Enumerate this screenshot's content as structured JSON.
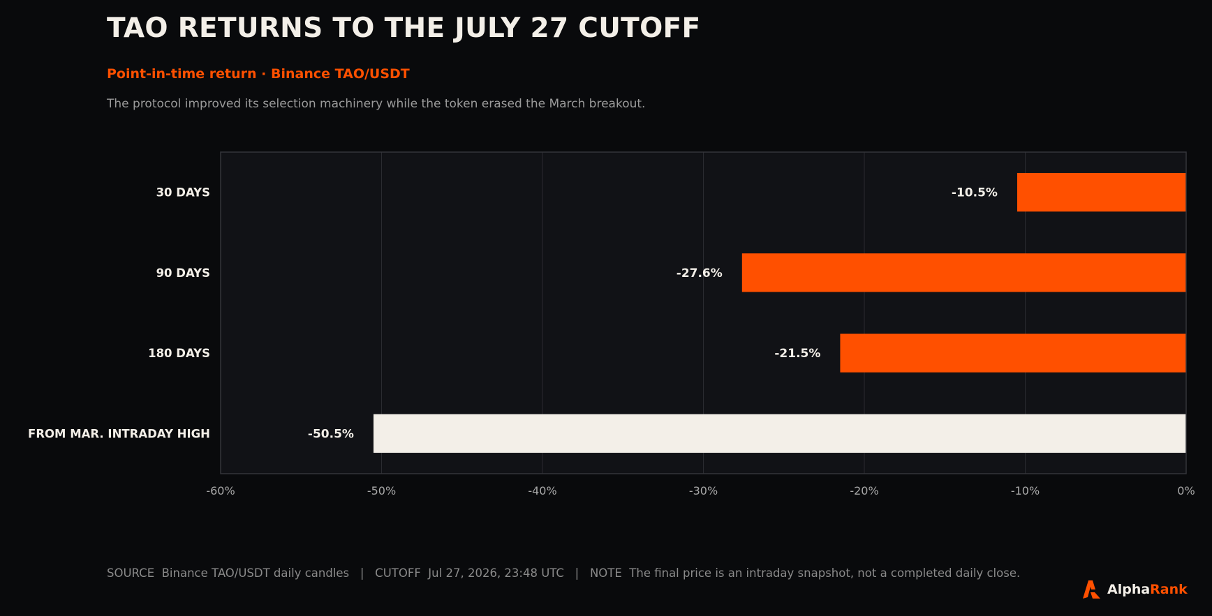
{
  "header": {
    "title": "TAO RETURNS TO THE JULY 27 CUTOFF",
    "subtitle": "Point-in-time return · Binance TAO/USDT",
    "description": "The protocol improved its selection machinery while the token erased the March breakout."
  },
  "chart_data": {
    "type": "bar",
    "orientation": "horizontal",
    "categories": [
      "30 DAYS",
      "90 DAYS",
      "180 DAYS",
      "FROM MAR. INTRADAY HIGH"
    ],
    "values": [
      -10.5,
      -27.6,
      -21.5,
      -50.5
    ],
    "data_labels": [
      "-10.5%",
      "-27.6%",
      "-21.5%",
      "-50.5%"
    ],
    "bar_colors": [
      "#ff5000",
      "#ff5000",
      "#ff5000",
      "#f3efe8"
    ],
    "xlim": [
      -60,
      0
    ],
    "xticks": [
      -60,
      -50,
      -40,
      -30,
      -20,
      -10,
      0
    ],
    "xtick_labels": [
      "-60%",
      "-50%",
      "-40%",
      "-30%",
      "-20%",
      "-10%",
      "0%"
    ],
    "grid": true,
    "xlabel": "",
    "ylabel": ""
  },
  "footer": {
    "text": "SOURCE  Binance TAO/USDT daily candles   |   CUTOFF  Jul 27, 2026, 23:48 UTC   |   NOTE  The final price is an intraday snapshot, not a completed daily close."
  },
  "brand": {
    "name_part1": "Alpha",
    "name_part2": "Rank",
    "icon": "alpharank-logo-icon"
  },
  "colors": {
    "background": "#090a0c",
    "plot_background": "#111216",
    "accent": "#ff5000",
    "highlight": "#f3efe8",
    "grid": "#2a2b30",
    "tick_text": "#a8a8a8"
  }
}
